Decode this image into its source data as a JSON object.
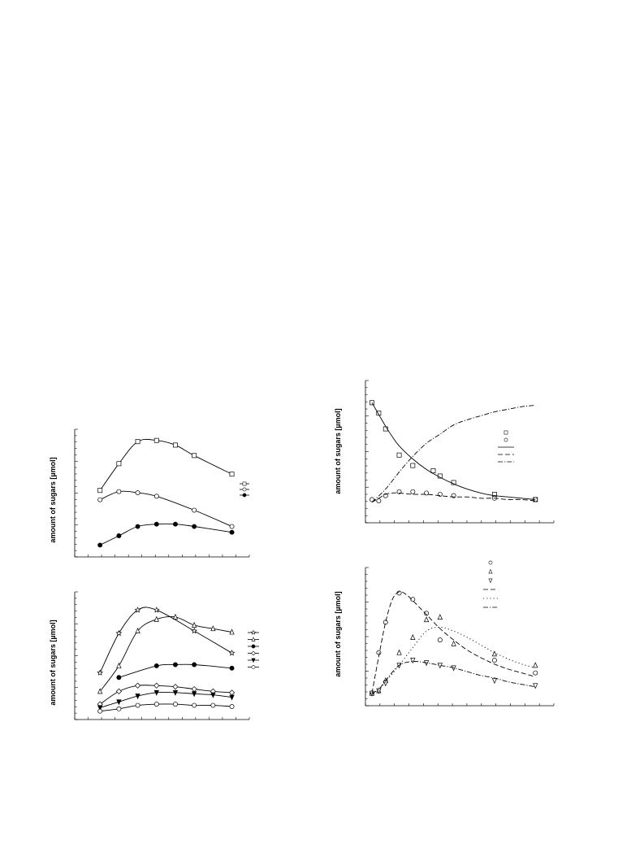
{
  "chart_data": [
    {
      "id": "chart-a",
      "type": "line",
      "ylabel": "amount of sugars [µmol]",
      "xlabel": "",
      "title": "",
      "xlim": [
        0,
        13
      ],
      "ylim": [
        0,
        100
      ],
      "legend_position": "right",
      "series": [
        {
          "marker": "square",
          "line": "solid",
          "x": [
            1.5,
            3,
            4.5,
            6,
            7.5,
            9,
            12
          ],
          "y": [
            53,
            76,
            95,
            96,
            92,
            83,
            67
          ]
        },
        {
          "marker": "hollow-circle",
          "line": "solid",
          "x": [
            1.5,
            3,
            4.5,
            6,
            9,
            12
          ],
          "y": [
            45,
            52,
            51,
            48,
            36,
            22
          ]
        },
        {
          "marker": "filled-circle",
          "line": "solid",
          "x": [
            1.5,
            3,
            4.5,
            6,
            7.5,
            9,
            12
          ],
          "y": [
            6,
            14,
            22,
            24,
            24,
            22,
            17
          ]
        }
      ]
    },
    {
      "id": "chart-b",
      "type": "line",
      "ylabel": "amount of sugars [µmol]",
      "xlabel": "",
      "title": "",
      "xlim": [
        0,
        13
      ],
      "ylim": [
        0,
        100
      ],
      "legend_position": "right",
      "series": [
        {
          "marker": "star",
          "line": "solid",
          "x": [
            1.5,
            3,
            4.5,
            6,
            9,
            12
          ],
          "y": [
            36,
            70,
            90,
            90,
            72,
            53
          ]
        },
        {
          "marker": "hollow-triangle-up",
          "line": "solid",
          "x": [
            1.5,
            3,
            4.5,
            6,
            7.5,
            9,
            10.5,
            12
          ],
          "y": [
            20,
            42,
            72,
            82,
            84,
            77,
            74,
            71
          ]
        },
        {
          "marker": "filled-circle",
          "line": "solid",
          "x": [
            3,
            6,
            7.5,
            9,
            12
          ],
          "y": [
            32,
            42,
            43,
            43,
            40
          ]
        },
        {
          "marker": "hollow-diamond",
          "line": "solid",
          "x": [
            1.5,
            3,
            4.5,
            6,
            7.5,
            9,
            10.5,
            12
          ],
          "y": [
            9,
            20,
            25,
            25,
            24,
            22,
            20,
            19
          ]
        },
        {
          "marker": "filled-triangle-down",
          "line": "solid",
          "x": [
            1.5,
            3,
            4.5,
            6,
            7.5,
            9,
            10.5,
            12
          ],
          "y": [
            6,
            11,
            16,
            19,
            19,
            18,
            17,
            15
          ]
        },
        {
          "marker": "hollow-circle",
          "line": "solid",
          "x": [
            1.5,
            3,
            4.5,
            6,
            7.5,
            9,
            10.5,
            12
          ],
          "y": [
            3,
            5,
            8,
            9,
            9,
            8,
            8,
            7
          ]
        }
      ]
    },
    {
      "id": "chart-c",
      "type": "line",
      "ylabel": "amount of sugars [µmol]",
      "xlabel": "",
      "title": "",
      "xlim": [
        0,
        13
      ],
      "ylim": [
        0,
        100
      ],
      "legend_position": "right",
      "series": [
        {
          "marker": "square",
          "line": "none",
          "x": [
            0,
            0.5,
            1,
            2,
            3,
            4.5,
            5,
            6,
            9,
            12
          ],
          "y": [
            88,
            80,
            68,
            48,
            40,
            36,
            32,
            27,
            18,
            14
          ]
        },
        {
          "marker": "hollow-circle",
          "line": "none",
          "x": [
            0,
            0.5,
            1,
            2,
            3,
            4,
            5,
            6,
            9,
            12
          ],
          "y": [
            14,
            13,
            17,
            20,
            20,
            19,
            18,
            17,
            15,
            14
          ]
        },
        {
          "marker": "none",
          "line": "solid",
          "x": [
            0,
            0.5,
            1,
            1.5,
            2,
            3,
            4,
            5,
            6,
            7,
            8,
            9,
            10,
            11,
            12
          ],
          "y": [
            88,
            79,
            70,
            62,
            55,
            45,
            37,
            31,
            26,
            22,
            19,
            17,
            16,
            15,
            14
          ]
        },
        {
          "marker": "none",
          "line": "dashed",
          "x": [
            0,
            0.5,
            1,
            1.5,
            2,
            3,
            4,
            5,
            6,
            7,
            8,
            9,
            10,
            11,
            12
          ],
          "y": [
            12,
            15,
            18,
            19,
            19,
            18,
            18,
            17,
            16,
            16,
            15,
            15,
            14,
            14,
            13
          ]
        },
        {
          "marker": "none",
          "line": "dash-dot",
          "x": [
            0,
            1,
            2,
            3,
            4,
            5,
            6,
            7,
            8,
            9,
            10,
            11,
            12
          ],
          "y": [
            12,
            22,
            35,
            47,
            57,
            64,
            71,
            75,
            78,
            81,
            83,
            85,
            86
          ]
        }
      ]
    },
    {
      "id": "chart-d",
      "type": "line",
      "ylabel": "amount of sugars [µmol]",
      "xlabel": "",
      "title": "",
      "xlim": [
        0,
        13
      ],
      "ylim": [
        0,
        100
      ],
      "legend_position": "top-right",
      "series": [
        {
          "marker": "hollow-circle",
          "line": "none",
          "x": [
            0,
            0.5,
            1,
            2,
            3,
            4,
            5,
            9,
            12
          ],
          "y": [
            6,
            38,
            62,
            85,
            80,
            69,
            48,
            32,
            22
          ]
        },
        {
          "marker": "hollow-triangle-up",
          "line": "none",
          "x": [
            0,
            0.5,
            1,
            2,
            3,
            4,
            5,
            6,
            9,
            12
          ],
          "y": [
            6,
            8,
            16,
            38,
            50,
            64,
            66,
            45,
            37,
            28
          ]
        },
        {
          "marker": "hollow-triangle-down",
          "line": "none",
          "x": [
            0,
            0.5,
            1,
            2,
            3,
            4,
            5,
            6,
            9,
            12
          ],
          "y": [
            6,
            8,
            14,
            28,
            32,
            30,
            28,
            26,
            16,
            12
          ]
        },
        {
          "marker": "none",
          "line": "dashed",
          "x": [
            0,
            0.5,
            1,
            1.5,
            2,
            2.5,
            3,
            4,
            5,
            6,
            7,
            8,
            9,
            10,
            11,
            12
          ],
          "y": [
            6,
            35,
            62,
            80,
            86,
            84,
            79,
            68,
            57,
            48,
            40,
            34,
            29,
            25,
            22,
            19
          ]
        },
        {
          "marker": "none",
          "line": "dotted",
          "x": [
            0,
            0.5,
            1,
            2,
            3,
            4,
            5,
            6,
            7,
            8,
            9,
            10,
            11,
            12
          ],
          "y": [
            6,
            9,
            15,
            28,
            42,
            55,
            58,
            55,
            50,
            44,
            38,
            33,
            29,
            26
          ]
        },
        {
          "marker": "none",
          "line": "dash-dot",
          "x": [
            0,
            0.5,
            1,
            2,
            3,
            4,
            5,
            6,
            7,
            8,
            9,
            10,
            11,
            12
          ],
          "y": [
            6,
            9,
            16,
            28,
            31,
            30,
            28,
            26,
            23,
            20,
            18,
            15,
            13,
            11
          ]
        }
      ]
    }
  ]
}
